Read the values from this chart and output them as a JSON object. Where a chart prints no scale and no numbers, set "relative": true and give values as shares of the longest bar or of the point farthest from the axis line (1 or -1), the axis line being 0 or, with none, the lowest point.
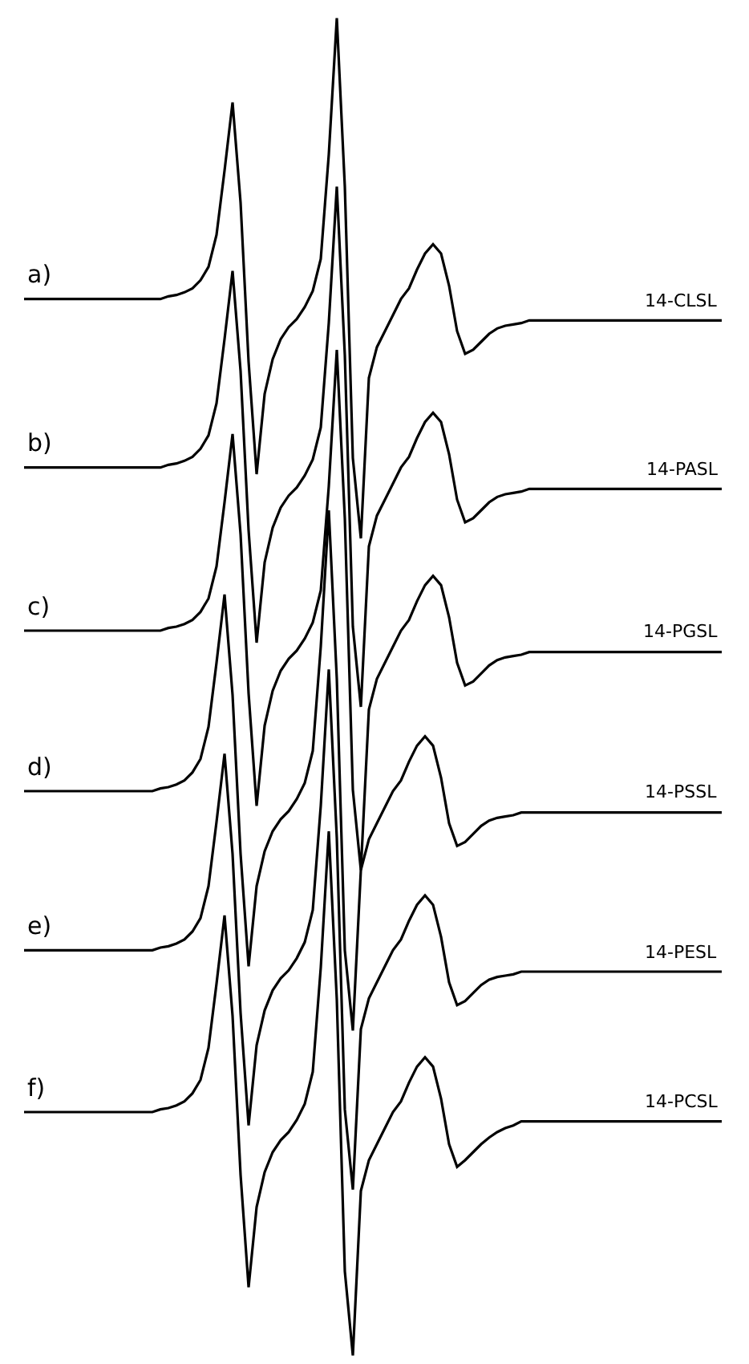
{
  "chart_data": {
    "type": "line",
    "relative": true,
    "legend": false,
    "marker": "none",
    "line_style": "solid",
    "categories": [
      null,
      null,
      null,
      null,
      null,
      null,
      null,
      null,
      null,
      null,
      null,
      null,
      null,
      null,
      null,
      null,
      null,
      null,
      null,
      null,
      null,
      null,
      null,
      null,
      null,
      null,
      null,
      null,
      null,
      null,
      null,
      null,
      null,
      null,
      null,
      null,
      null,
      null,
      null,
      null,
      null,
      null,
      null,
      null,
      null,
      null,
      null,
      null,
      null,
      null,
      null,
      null,
      null,
      null,
      null,
      null,
      null,
      null,
      null,
      null,
      null,
      null,
      null,
      null,
      null,
      null,
      null,
      null,
      null,
      null,
      null,
      null,
      null,
      null,
      null,
      null,
      null,
      null,
      null,
      null,
      null,
      null,
      null,
      null,
      null,
      null,
      null,
      null
    ],
    "annotations": [
      {
        "text": "a)",
        "y": 0.79
      },
      {
        "text": "b)",
        "y": 0.664
      },
      {
        "text": "c)",
        "y": 0.542
      },
      {
        "text": "d)",
        "y": 0.422
      },
      {
        "text": "e)",
        "y": 0.303
      },
      {
        "text": "f)",
        "y": 0.182
      }
    ],
    "series": [
      {
        "name": "14-CLSL",
        "color": "#000000",
        "values": [
          0.79,
          0.79,
          0.79,
          0.79,
          0.79,
          0.79,
          0.79,
          0.79,
          0.79,
          0.79,
          0.79,
          0.79,
          0.79,
          0.79,
          0.79,
          0.79,
          0.79,
          0.79,
          0.792,
          0.793,
          0.795,
          0.798,
          0.804,
          0.814,
          0.838,
          0.886,
          0.937,
          0.862,
          0.743,
          0.659,
          0.719,
          0.745,
          0.76,
          0.769,
          0.775,
          0.784,
          0.796,
          0.82,
          0.898,
          1.0,
          0.874,
          0.671,
          0.611,
          0.731,
          0.754,
          0.766,
          0.778,
          0.79,
          0.798,
          0.812,
          0.824,
          0.831,
          0.824,
          0.8,
          0.766,
          0.749,
          0.752,
          0.758,
          0.764,
          0.768,
          0.77,
          0.771,
          0.772,
          0.774,
          0.774,
          0.774,
          0.774,
          0.774,
          0.774,
          0.774,
          0.774,
          0.774,
          0.774,
          0.774,
          0.774,
          0.774,
          0.774,
          0.774,
          0.774,
          0.774,
          0.774,
          0.774,
          0.774,
          0.774,
          0.774,
          0.774,
          0.774,
          0.774
        ]
      },
      {
        "name": "14-PASL",
        "color": "#000000",
        "values": [
          0.664,
          0.664,
          0.664,
          0.664,
          0.664,
          0.664,
          0.664,
          0.664,
          0.664,
          0.664,
          0.664,
          0.664,
          0.664,
          0.664,
          0.664,
          0.664,
          0.664,
          0.664,
          0.666,
          0.667,
          0.669,
          0.672,
          0.678,
          0.688,
          0.712,
          0.76,
          0.811,
          0.736,
          0.617,
          0.533,
          0.593,
          0.619,
          0.634,
          0.643,
          0.649,
          0.658,
          0.67,
          0.694,
          0.772,
          0.874,
          0.748,
          0.545,
          0.485,
          0.605,
          0.628,
          0.64,
          0.652,
          0.664,
          0.672,
          0.686,
          0.698,
          0.705,
          0.698,
          0.674,
          0.64,
          0.623,
          0.626,
          0.632,
          0.638,
          0.642,
          0.644,
          0.645,
          0.646,
          0.648,
          0.648,
          0.648,
          0.648,
          0.648,
          0.648,
          0.648,
          0.648,
          0.648,
          0.648,
          0.648,
          0.648,
          0.648,
          0.648,
          0.648,
          0.648,
          0.648,
          0.648,
          0.648,
          0.648,
          0.648,
          0.648,
          0.648,
          0.648,
          0.648
        ]
      },
      {
        "name": "14-PGSL",
        "color": "#000000",
        "values": [
          0.542,
          0.542,
          0.542,
          0.542,
          0.542,
          0.542,
          0.542,
          0.542,
          0.542,
          0.542,
          0.542,
          0.542,
          0.542,
          0.542,
          0.542,
          0.542,
          0.542,
          0.542,
          0.544,
          0.545,
          0.547,
          0.55,
          0.556,
          0.566,
          0.59,
          0.638,
          0.689,
          0.614,
          0.495,
          0.411,
          0.471,
          0.497,
          0.512,
          0.521,
          0.527,
          0.536,
          0.548,
          0.572,
          0.65,
          0.752,
          0.626,
          0.423,
          0.363,
          0.483,
          0.506,
          0.518,
          0.53,
          0.542,
          0.55,
          0.564,
          0.576,
          0.583,
          0.576,
          0.552,
          0.518,
          0.501,
          0.504,
          0.51,
          0.516,
          0.52,
          0.522,
          0.523,
          0.524,
          0.526,
          0.526,
          0.526,
          0.526,
          0.526,
          0.526,
          0.526,
          0.526,
          0.526,
          0.526,
          0.526,
          0.526,
          0.526,
          0.526,
          0.526,
          0.526,
          0.526,
          0.526,
          0.526,
          0.526,
          0.526,
          0.526,
          0.526,
          0.526,
          0.526
        ]
      },
      {
        "name": "14-PSSL",
        "color": "#000000",
        "values": [
          0.422,
          0.422,
          0.422,
          0.422,
          0.422,
          0.422,
          0.422,
          0.422,
          0.422,
          0.422,
          0.422,
          0.422,
          0.422,
          0.422,
          0.422,
          0.422,
          0.422,
          0.424,
          0.425,
          0.427,
          0.43,
          0.436,
          0.446,
          0.47,
          0.518,
          0.569,
          0.494,
          0.375,
          0.291,
          0.351,
          0.377,
          0.392,
          0.401,
          0.407,
          0.416,
          0.428,
          0.452,
          0.53,
          0.632,
          0.506,
          0.303,
          0.243,
          0.363,
          0.386,
          0.398,
          0.41,
          0.422,
          0.43,
          0.444,
          0.456,
          0.463,
          0.456,
          0.432,
          0.398,
          0.381,
          0.384,
          0.39,
          0.396,
          0.4,
          0.402,
          0.403,
          0.404,
          0.406,
          0.406,
          0.406,
          0.406,
          0.406,
          0.406,
          0.406,
          0.406,
          0.406,
          0.406,
          0.406,
          0.406,
          0.406,
          0.406,
          0.406,
          0.406,
          0.406,
          0.406,
          0.406,
          0.406,
          0.406,
          0.406,
          0.406,
          0.406,
          0.406,
          0.406
        ]
      },
      {
        "name": "14-PESL",
        "color": "#000000",
        "values": [
          0.303,
          0.303,
          0.303,
          0.303,
          0.303,
          0.303,
          0.303,
          0.303,
          0.303,
          0.303,
          0.303,
          0.303,
          0.303,
          0.303,
          0.303,
          0.303,
          0.303,
          0.305,
          0.306,
          0.308,
          0.311,
          0.317,
          0.327,
          0.351,
          0.399,
          0.45,
          0.375,
          0.256,
          0.172,
          0.232,
          0.258,
          0.273,
          0.282,
          0.288,
          0.297,
          0.309,
          0.333,
          0.411,
          0.513,
          0.387,
          0.184,
          0.124,
          0.244,
          0.267,
          0.279,
          0.291,
          0.303,
          0.311,
          0.325,
          0.337,
          0.344,
          0.337,
          0.313,
          0.279,
          0.262,
          0.265,
          0.271,
          0.277,
          0.281,
          0.283,
          0.284,
          0.285,
          0.287,
          0.287,
          0.287,
          0.287,
          0.287,
          0.287,
          0.287,
          0.287,
          0.287,
          0.287,
          0.287,
          0.287,
          0.287,
          0.287,
          0.287,
          0.287,
          0.287,
          0.287,
          0.287,
          0.287,
          0.287,
          0.287,
          0.287,
          0.287,
          0.287,
          0.287
        ]
      },
      {
        "name": "14-PCSL",
        "color": "#000000",
        "values": [
          0.182,
          0.182,
          0.182,
          0.182,
          0.182,
          0.182,
          0.182,
          0.182,
          0.182,
          0.182,
          0.182,
          0.182,
          0.182,
          0.182,
          0.182,
          0.182,
          0.182,
          0.184,
          0.185,
          0.187,
          0.19,
          0.196,
          0.206,
          0.23,
          0.278,
          0.329,
          0.254,
          0.135,
          0.051,
          0.111,
          0.137,
          0.152,
          0.161,
          0.167,
          0.176,
          0.188,
          0.212,
          0.29,
          0.392,
          0.266,
          0.063,
          0.0,
          0.123,
          0.146,
          0.158,
          0.17,
          0.182,
          0.19,
          0.204,
          0.216,
          0.223,
          0.216,
          0.192,
          0.158,
          0.141,
          0.146,
          0.152,
          0.158,
          0.163,
          0.167,
          0.17,
          0.172,
          0.175,
          0.175,
          0.175,
          0.175,
          0.175,
          0.175,
          0.175,
          0.175,
          0.175,
          0.175,
          0.175,
          0.175,
          0.175,
          0.175,
          0.175,
          0.175,
          0.175,
          0.175,
          0.175,
          0.175,
          0.175,
          0.175,
          0.175,
          0.175,
          0.175,
          0.175
        ]
      }
    ]
  }
}
